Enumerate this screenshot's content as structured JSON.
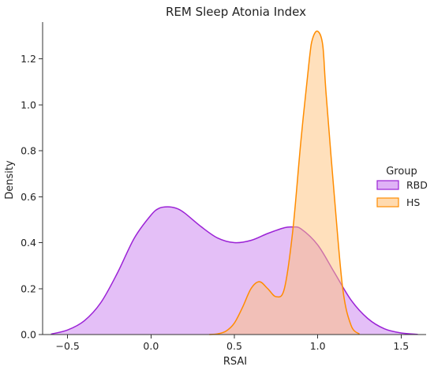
{
  "chart_data": {
    "type": "area",
    "title": "REM Sleep Atonia Index",
    "xlabel": "RSAI",
    "ylabel": "Density",
    "xlim": [
      -0.65,
      1.65
    ],
    "ylim": [
      0,
      1.36
    ],
    "xticks": [
      -0.5,
      0.0,
      0.5,
      1.0,
      1.5
    ],
    "xtick_labels": [
      "−0.5",
      "0.0",
      "0.5",
      "1.0",
      "1.5"
    ],
    "yticks": [
      0.0,
      0.2,
      0.4,
      0.6,
      0.8,
      1.0,
      1.2
    ],
    "ytick_labels": [
      "0.0",
      "0.2",
      "0.4",
      "0.6",
      "0.8",
      "1.0",
      "1.2"
    ],
    "grid": false,
    "legend": {
      "title": "Group",
      "placement": "right"
    },
    "series": [
      {
        "name": "RBD",
        "line_color": "#9b22d6",
        "fill_color": "#c97ff0",
        "x": [
          -0.6,
          -0.5,
          -0.4,
          -0.3,
          -0.2,
          -0.1,
          0.0,
          0.05,
          0.1,
          0.15,
          0.2,
          0.3,
          0.4,
          0.5,
          0.6,
          0.7,
          0.8,
          0.85,
          0.9,
          1.0,
          1.1,
          1.2,
          1.3,
          1.4,
          1.5,
          1.6
        ],
        "values": [
          0.002,
          0.02,
          0.06,
          0.14,
          0.27,
          0.42,
          0.52,
          0.55,
          0.556,
          0.55,
          0.53,
          0.47,
          0.42,
          0.4,
          0.41,
          0.44,
          0.465,
          0.468,
          0.46,
          0.39,
          0.27,
          0.15,
          0.07,
          0.025,
          0.007,
          0.001
        ]
      },
      {
        "name": "HS",
        "line_color": "#ff8c00",
        "fill_color": "#ffc27a",
        "x": [
          0.35,
          0.4,
          0.45,
          0.5,
          0.55,
          0.6,
          0.65,
          0.7,
          0.75,
          0.8,
          0.85,
          0.9,
          0.95,
          0.97,
          1.0,
          1.03,
          1.05,
          1.1,
          1.15,
          1.2,
          1.25
        ],
        "values": [
          0.0,
          0.003,
          0.015,
          0.05,
          0.12,
          0.2,
          0.23,
          0.2,
          0.165,
          0.2,
          0.45,
          0.85,
          1.2,
          1.29,
          1.32,
          1.26,
          1.05,
          0.6,
          0.2,
          0.04,
          0.002
        ]
      }
    ]
  }
}
